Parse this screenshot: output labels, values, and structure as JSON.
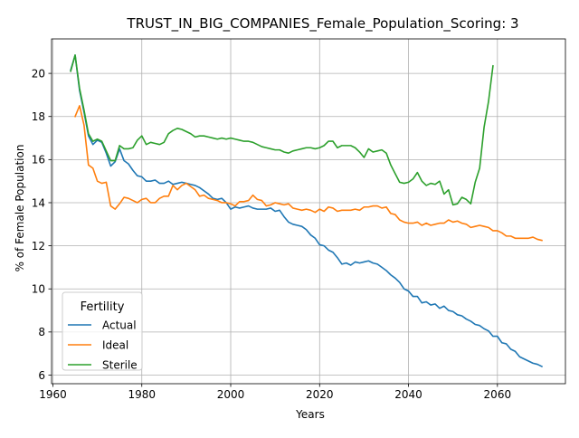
{
  "chart_data": {
    "type": "line",
    "title": "TRUST_IN_BIG_COMPANIES_Female_Population_Scoring: 3",
    "xlabel": "Years",
    "ylabel": "% of Female Population",
    "xlim": [
      1959.7,
      2075.3
    ],
    "ylim": [
      5.6,
      21.6
    ],
    "xticks": [
      1960,
      1980,
      2000,
      2020,
      2040,
      2060
    ],
    "yticks": [
      6,
      8,
      10,
      12,
      14,
      16,
      18,
      20
    ],
    "grid": true,
    "legend": {
      "title": "Fertility",
      "placement": "lower-left"
    },
    "series": [
      {
        "name": "Actual",
        "color": "#1f77b4",
        "x": [
          1964,
          1965,
          1966,
          1967,
          1968,
          1969,
          1970,
          1971,
          1972,
          1973,
          1974,
          1975,
          1976,
          1977,
          1978,
          1979,
          1980,
          1981,
          1982,
          1983,
          1984,
          1985,
          1986,
          1987,
          1988,
          1989,
          1990,
          1991,
          1992,
          1993,
          1994,
          1995,
          1996,
          1997,
          1998,
          1999,
          2000,
          2001,
          2002,
          2003,
          2004,
          2005,
          2006,
          2007,
          2008,
          2009,
          2010,
          2011,
          2012,
          2013,
          2014,
          2015,
          2016,
          2017,
          2018,
          2019,
          2020,
          2021,
          2022,
          2023,
          2024,
          2025,
          2026,
          2027,
          2028,
          2029,
          2030,
          2031,
          2032,
          2033,
          2034,
          2035,
          2036,
          2037,
          2038,
          2039,
          2040,
          2041,
          2042,
          2043,
          2044,
          2045,
          2046,
          2047,
          2048,
          2049,
          2050,
          2051,
          2052,
          2053,
          2054,
          2055,
          2056,
          2057,
          2058,
          2059,
          2060,
          2061,
          2062,
          2063,
          2064,
          2065,
          2066,
          2067,
          2068,
          2069,
          2070
        ],
        "y": [
          20.15,
          20.85,
          19.2,
          18.2,
          17.1,
          16.7,
          16.9,
          16.8,
          16.3,
          15.7,
          15.9,
          16.5,
          15.95,
          15.8,
          15.5,
          15.25,
          15.2,
          15.0,
          15.0,
          15.05,
          14.9,
          14.9,
          15.0,
          14.85,
          14.9,
          14.95,
          14.9,
          14.85,
          14.8,
          14.7,
          14.55,
          14.4,
          14.2,
          14.15,
          14.2,
          14.0,
          13.7,
          13.8,
          13.75,
          13.8,
          13.85,
          13.75,
          13.7,
          13.7,
          13.7,
          13.75,
          13.6,
          13.65,
          13.35,
          13.1,
          13.0,
          12.95,
          12.9,
          12.75,
          12.5,
          12.35,
          12.05,
          12.0,
          11.8,
          11.7,
          11.45,
          11.15,
          11.2,
          11.1,
          11.25,
          11.2,
          11.25,
          11.3,
          11.2,
          11.15,
          11.0,
          10.85,
          10.65,
          10.5,
          10.3,
          10.0,
          9.9,
          9.65,
          9.65,
          9.35,
          9.4,
          9.25,
          9.3,
          9.1,
          9.2,
          9.0,
          8.95,
          8.8,
          8.75,
          8.6,
          8.5,
          8.35,
          8.3,
          8.15,
          8.05,
          7.8,
          7.8,
          7.5,
          7.45,
          7.2,
          7.1,
          6.85,
          6.75,
          6.65,
          6.55,
          6.5,
          6.4
        ]
      },
      {
        "name": "Ideal",
        "color": "#ff7f0e",
        "x": [
          1965,
          1966,
          1967,
          1968,
          1969,
          1970,
          1971,
          1972,
          1973,
          1974,
          1975,
          1976,
          1977,
          1978,
          1979,
          1980,
          1981,
          1982,
          1983,
          1984,
          1985,
          1986,
          1987,
          1988,
          1989,
          1990,
          1991,
          1992,
          1993,
          1994,
          1995,
          1996,
          1997,
          1998,
          1999,
          2000,
          2001,
          2002,
          2003,
          2004,
          2005,
          2006,
          2007,
          2008,
          2009,
          2010,
          2011,
          2012,
          2013,
          2014,
          2015,
          2016,
          2017,
          2018,
          2019,
          2020,
          2021,
          2022,
          2023,
          2024,
          2025,
          2026,
          2027,
          2028,
          2029,
          2030,
          2031,
          2032,
          2033,
          2034,
          2035,
          2036,
          2037,
          2038,
          2039,
          2040,
          2041,
          2042,
          2043,
          2044,
          2045,
          2046,
          2047,
          2048,
          2049,
          2050,
          2051,
          2052,
          2053,
          2054,
          2055,
          2056,
          2057,
          2058,
          2059,
          2060,
          2061,
          2062,
          2063,
          2064,
          2065,
          2066,
          2067,
          2068,
          2069,
          2070
        ],
        "y": [
          18.0,
          18.5,
          17.6,
          15.75,
          15.6,
          15.0,
          14.9,
          14.95,
          13.85,
          13.7,
          13.95,
          14.25,
          14.2,
          14.1,
          14.0,
          14.15,
          14.2,
          14.0,
          14.0,
          14.2,
          14.3,
          14.3,
          14.8,
          14.6,
          14.8,
          14.9,
          14.75,
          14.6,
          14.3,
          14.35,
          14.2,
          14.15,
          14.1,
          14.0,
          14.0,
          13.95,
          13.85,
          14.05,
          14.05,
          14.1,
          14.35,
          14.15,
          14.1,
          13.85,
          13.9,
          14.0,
          13.95,
          13.9,
          13.95,
          13.75,
          13.7,
          13.65,
          13.7,
          13.65,
          13.55,
          13.7,
          13.6,
          13.8,
          13.75,
          13.6,
          13.65,
          13.65,
          13.65,
          13.7,
          13.65,
          13.8,
          13.8,
          13.85,
          13.85,
          13.75,
          13.8,
          13.5,
          13.45,
          13.2,
          13.1,
          13.05,
          13.05,
          13.1,
          12.95,
          13.05,
          12.95,
          13.0,
          13.05,
          13.05,
          13.2,
          13.1,
          13.15,
          13.05,
          13.0,
          12.85,
          12.9,
          12.95,
          12.9,
          12.85,
          12.7,
          12.7,
          12.6,
          12.45,
          12.45,
          12.35,
          12.35,
          12.35,
          12.35,
          12.4,
          12.3,
          12.25
        ]
      },
      {
        "name": "Sterile",
        "color": "#2ca02c",
        "x": [
          1964,
          1965,
          1966,
          1967,
          1968,
          1969,
          1970,
          1971,
          1972,
          1973,
          1974,
          1975,
          1976,
          1977,
          1978,
          1979,
          1980,
          1981,
          1982,
          1983,
          1984,
          1985,
          1986,
          1987,
          1988,
          1989,
          1990,
          1991,
          1992,
          1993,
          1994,
          1995,
          1996,
          1997,
          1998,
          1999,
          2000,
          2001,
          2002,
          2003,
          2004,
          2005,
          2006,
          2007,
          2008,
          2009,
          2010,
          2011,
          2012,
          2013,
          2014,
          2015,
          2016,
          2017,
          2018,
          2019,
          2020,
          2021,
          2022,
          2023,
          2024,
          2025,
          2026,
          2027,
          2028,
          2029,
          2030,
          2031,
          2032,
          2033,
          2034,
          2035,
          2036,
          2037,
          2038,
          2039,
          2040,
          2041,
          2042,
          2043,
          2044,
          2045,
          2046,
          2047,
          2048,
          2049,
          2050,
          2051,
          2052,
          2053,
          2054,
          2055,
          2056,
          2057,
          2058,
          2059
        ],
        "y": [
          20.1,
          20.85,
          19.3,
          18.3,
          17.2,
          16.85,
          16.95,
          16.85,
          16.4,
          15.95,
          15.95,
          16.65,
          16.5,
          16.5,
          16.55,
          16.9,
          17.1,
          16.7,
          16.8,
          16.75,
          16.7,
          16.8,
          17.2,
          17.35,
          17.45,
          17.4,
          17.3,
          17.2,
          17.05,
          17.1,
          17.1,
          17.05,
          17.0,
          16.95,
          17.0,
          16.95,
          17.0,
          16.95,
          16.9,
          16.85,
          16.85,
          16.8,
          16.7,
          16.6,
          16.55,
          16.5,
          16.45,
          16.45,
          16.35,
          16.3,
          16.4,
          16.45,
          16.5,
          16.55,
          16.55,
          16.5,
          16.55,
          16.65,
          16.85,
          16.85,
          16.55,
          16.65,
          16.65,
          16.65,
          16.55,
          16.35,
          16.1,
          16.5,
          16.35,
          16.4,
          16.45,
          16.3,
          15.75,
          15.35,
          14.95,
          14.9,
          14.95,
          15.1,
          15.4,
          15.0,
          14.8,
          14.9,
          14.85,
          15.0,
          14.4,
          14.6,
          13.9,
          13.95,
          14.25,
          14.15,
          13.95,
          14.95,
          15.6,
          17.5,
          18.7,
          20.35
        ]
      }
    ]
  }
}
